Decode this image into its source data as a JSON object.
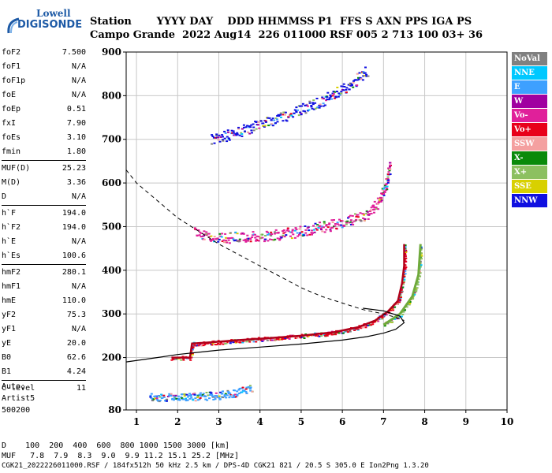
{
  "logo": {
    "line1": "Lowell",
    "line2": "DIGISONDE"
  },
  "header": {
    "row1": "Station       YYYY DAY    DDD HHMMSS P1  FFS S AXN PPS IGA PS",
    "row2": "Campo Grande  2022 Aug14  226 011000 RSF 005 2 713 100 03+ 36"
  },
  "params": [
    [
      {
        "name": "foF2",
        "value": "7.500"
      },
      {
        "name": "foF1",
        "value": "N/A"
      },
      {
        "name": "foF1p",
        "value": "N/A"
      },
      {
        "name": "foE",
        "value": "N/A"
      },
      {
        "name": "foEp",
        "value": "0.51"
      },
      {
        "name": "fxI",
        "value": "7.90"
      },
      {
        "name": "foEs",
        "value": "3.10"
      },
      {
        "name": "fmin",
        "value": "1.80"
      }
    ],
    [
      {
        "name": "MUF(D)",
        "value": "25.23"
      },
      {
        "name": "M(D)",
        "value": "3.36"
      },
      {
        "name": "D",
        "value": "N/A"
      }
    ],
    [
      {
        "name": "h`F",
        "value": "194.0"
      },
      {
        "name": "h`F2",
        "value": "194.0"
      },
      {
        "name": "h`E",
        "value": "N/A"
      },
      {
        "name": "h`Es",
        "value": "100.6"
      }
    ],
    [
      {
        "name": "hmF2",
        "value": "280.1"
      },
      {
        "name": "hmF1",
        "value": "N/A"
      },
      {
        "name": "hmE",
        "value": "110.0"
      },
      {
        "name": "yF2",
        "value": "75.3"
      },
      {
        "name": "yF1",
        "value": "N/A"
      },
      {
        "name": "yE",
        "value": "20.0"
      },
      {
        "name": "B0",
        "value": "62.6"
      },
      {
        "name": "B1",
        "value": "4.24"
      }
    ],
    [
      {
        "name": "C-level",
        "value": "11"
      }
    ]
  ],
  "auto": {
    "line1": "Auto:",
    "line2": "Artist5",
    "line3": "500200"
  },
  "legend": [
    {
      "label": "NoVal",
      "color": "#808080"
    },
    {
      "label": "NNE",
      "color": "#00c8ff"
    },
    {
      "label": "E",
      "color": "#3ea0ff"
    },
    {
      "label": "W",
      "color": "#a000a0"
    },
    {
      "label": "Vo-",
      "color": "#e0209a"
    },
    {
      "label": "Vo+",
      "color": "#e8001a"
    },
    {
      "label": "SSW",
      "color": "#f4a0a0"
    },
    {
      "label": "X-",
      "color": "#0a8a0a"
    },
    {
      "label": "X+",
      "color": "#8cc060"
    },
    {
      "label": "SSE",
      "color": "#d8d000"
    },
    {
      "label": "NNW",
      "color": "#1010e0"
    }
  ],
  "bottom": {
    "d_row": "D    100  200  400  600  800 1000 1500 3000 [km]",
    "muf_row": "MUF   7.8  7.9  8.3  9.0  9.9 11.2 15.1 25.2 [MHz]",
    "footer": "CGK21_2022226011000.RSF / 184fx512h 50 kHz 2.5 km / DPS-4D CGK21 821 / 20.5 S 305.0 E Ion2Png 1.3.20"
  },
  "chart_data": {
    "type": "scatter",
    "xlim": [
      0.75,
      10.0
    ],
    "ylim": [
      80,
      900
    ],
    "x_ticks": [
      1,
      2,
      3,
      4,
      5,
      6,
      7,
      8,
      9,
      10
    ],
    "y_ticks": [
      80,
      200,
      300,
      400,
      500,
      600,
      700,
      800,
      900
    ],
    "grid": true,
    "legend_position": "right",
    "traces": [
      {
        "name": "F2 O-trace",
        "color": "#e8001a",
        "points": [
          [
            1.85,
            200
          ],
          [
            2.3,
            200
          ],
          [
            2.35,
            232
          ],
          [
            2.8,
            235
          ],
          [
            3.5,
            240
          ],
          [
            4.3,
            245
          ],
          [
            5.0,
            250
          ],
          [
            5.8,
            258
          ],
          [
            6.4,
            270
          ],
          [
            6.8,
            285
          ],
          [
            7.1,
            305
          ],
          [
            7.35,
            330
          ],
          [
            7.45,
            370
          ],
          [
            7.5,
            410
          ],
          [
            7.5,
            460
          ]
        ]
      },
      {
        "name": "F2 X-trace",
        "color": "#8cc060",
        "points": [
          [
            7.0,
            275
          ],
          [
            7.4,
            300
          ],
          [
            7.7,
            340
          ],
          [
            7.85,
            390
          ],
          [
            7.9,
            460
          ]
        ]
      },
      {
        "name": "2F2 echoes",
        "color": "#e0209a",
        "points": [
          [
            2.4,
            490
          ],
          [
            3.0,
            475
          ],
          [
            4.0,
            478
          ],
          [
            5.0,
            490
          ],
          [
            6.0,
            510
          ],
          [
            6.6,
            530
          ],
          [
            6.9,
            560
          ],
          [
            7.05,
            600
          ],
          [
            7.15,
            640
          ]
        ]
      },
      {
        "name": "3F2 echoes",
        "color": "#1010e0",
        "points": [
          [
            2.8,
            700
          ],
          [
            3.5,
            720
          ],
          [
            4.5,
            750
          ],
          [
            5.5,
            790
          ],
          [
            6.3,
            835
          ],
          [
            6.6,
            860
          ]
        ]
      },
      {
        "name": "Es echoes",
        "color": "#3ea0ff",
        "points": [
          [
            1.3,
            110
          ],
          [
            2.0,
            110
          ],
          [
            2.6,
            112
          ],
          [
            3.0,
            115
          ],
          [
            3.4,
            120
          ],
          [
            3.8,
            130
          ]
        ]
      }
    ],
    "profile_curve": [
      [
        0.75,
        190
      ],
      [
        1.5,
        200
      ],
      [
        2.0,
        207
      ],
      [
        2.5,
        212
      ],
      [
        3.0,
        217
      ],
      [
        4.0,
        224
      ],
      [
        5.0,
        231
      ],
      [
        6.0,
        240
      ],
      [
        6.6,
        248
      ],
      [
        7.0,
        256
      ],
      [
        7.3,
        265
      ],
      [
        7.5,
        280
      ],
      [
        7.4,
        295
      ],
      [
        7.0,
        307
      ],
      [
        6.5,
        313
      ]
    ],
    "dashed_curve": [
      [
        0.75,
        630
      ],
      [
        1.0,
        600
      ],
      [
        1.5,
        560
      ],
      [
        2.0,
        520
      ],
      [
        2.5,
        490
      ],
      [
        3.0,
        460
      ],
      [
        3.5,
        435
      ],
      [
        4.0,
        410
      ],
      [
        4.5,
        385
      ],
      [
        5.0,
        360
      ],
      [
        5.5,
        340
      ],
      [
        6.0,
        325
      ],
      [
        6.5,
        310
      ],
      [
        7.0,
        300
      ],
      [
        7.3,
        292
      ],
      [
        7.5,
        285
      ]
    ]
  }
}
